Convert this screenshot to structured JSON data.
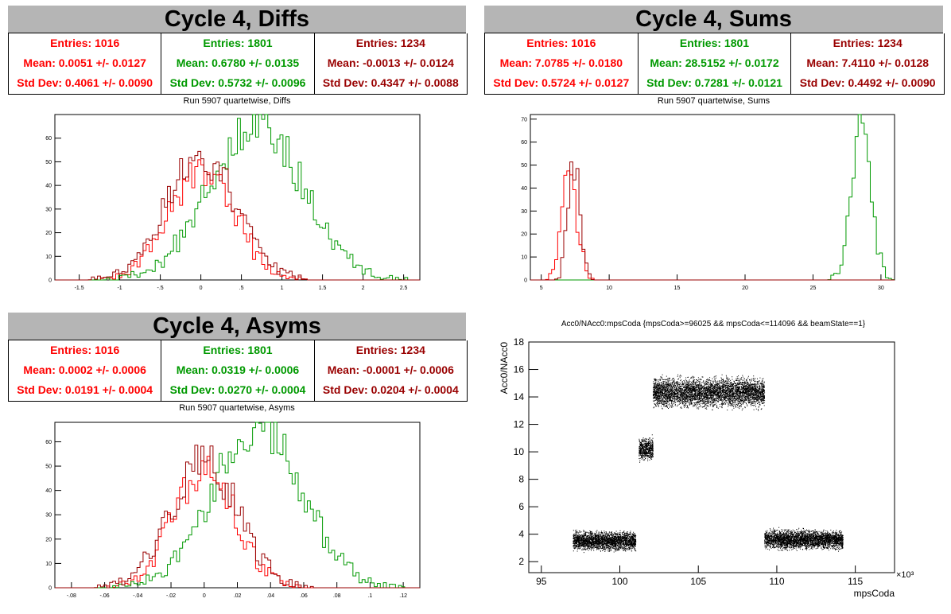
{
  "panels": {
    "diffs": {
      "title": "Cycle 4, Diffs",
      "subtitle": "Run 5907 quartetwise, Diffs",
      "stats": [
        {
          "entries": "Entries: 1016",
          "mean": "Mean: 0.0051 +/- 0.0127",
          "std": "Std Dev: 0.4061 +/- 0.0090"
        },
        {
          "entries": "Entries: 1801",
          "mean": "Mean: 0.6780 +/- 0.0135",
          "std": "Std Dev: 0.5732 +/- 0.0096"
        },
        {
          "entries": "Entries: 1234",
          "mean": "Mean: -0.0013 +/- 0.0124",
          "std": "Std Dev: 0.4347 +/- 0.0088"
        }
      ]
    },
    "sums": {
      "title": "Cycle 4, Sums",
      "subtitle": "Run 5907 quartetwise, Sums",
      "stats": [
        {
          "entries": "Entries: 1016",
          "mean": "Mean: 7.0785 +/- 0.0180",
          "std": "Std Dev: 0.5724 +/- 0.0127"
        },
        {
          "entries": "Entries: 1801",
          "mean": "Mean: 28.5152 +/- 0.0172",
          "std": "Std Dev: 0.7281 +/- 0.0121"
        },
        {
          "entries": "Entries: 1234",
          "mean": "Mean: 7.4110 +/- 0.0128",
          "std": "Std Dev: 0.4492 +/- 0.0090"
        }
      ]
    },
    "asyms": {
      "title": "Cycle 4, Asyms",
      "subtitle": "Run 5907 quartetwise, Asyms",
      "stats": [
        {
          "entries": "Entries: 1016",
          "mean": "Mean: 0.0002 +/- 0.0006",
          "std": "Std Dev: 0.0191 +/- 0.0004"
        },
        {
          "entries": "Entries: 1801",
          "mean": "Mean: 0.0319 +/- 0.0006",
          "std": "Std Dev: 0.0270 +/- 0.0004"
        },
        {
          "entries": "Entries: 1234",
          "mean": "Mean: -0.0001 +/- 0.0006",
          "std": "Std Dev: 0.0204 +/- 0.0004"
        }
      ]
    }
  },
  "colors": {
    "series1": "#ff0000",
    "series2": "#009900",
    "series3": "#990000",
    "title_bg": "#b5b5b5"
  },
  "chart_data": [
    {
      "id": "diffs",
      "type": "histogram",
      "xlim": [
        -1.8,
        2.7
      ],
      "ylim": [
        0,
        70
      ],
      "xticks": [
        -1.5,
        -1,
        -0.5,
        0,
        0.5,
        1,
        1.5,
        2,
        2.5
      ],
      "yticks": [
        0,
        10,
        20,
        30,
        40,
        50,
        60
      ],
      "series": [
        {
          "entries": 1016,
          "mean": 0.0051,
          "std": 0.4061,
          "peak": 47,
          "color": "#ff0000"
        },
        {
          "entries": 1801,
          "mean": 0.678,
          "std": 0.5732,
          "peak": 66,
          "color": "#009900"
        },
        {
          "entries": 1234,
          "mean": -0.0013,
          "std": 0.4347,
          "peak": 52,
          "color": "#990000"
        }
      ]
    },
    {
      "id": "sums",
      "type": "histogram",
      "xlim": [
        4.2,
        31
      ],
      "ylim": [
        0,
        72
      ],
      "xticks": [
        5,
        10,
        15,
        20,
        25,
        30
      ],
      "yticks": [
        0,
        10,
        20,
        30,
        40,
        50,
        60,
        70
      ],
      "series": [
        {
          "entries": 1016,
          "mean": 7.0785,
          "std": 0.5724,
          "peak": 45,
          "color": "#ff0000"
        },
        {
          "entries": 1801,
          "mean": 28.5152,
          "std": 0.7281,
          "peak": 69,
          "color": "#009900"
        },
        {
          "entries": 1234,
          "mean": 7.411,
          "std": 0.4492,
          "peak": 52,
          "color": "#990000"
        }
      ]
    },
    {
      "id": "asyms",
      "type": "histogram",
      "xlim": [
        -0.09,
        0.13
      ],
      "ylim": [
        0,
        68
      ],
      "xticks": [
        -0.08,
        -0.06,
        -0.04,
        -0.02,
        0,
        0.02,
        0.04,
        0.06,
        0.08,
        0.1,
        0.12
      ],
      "yticks": [
        0,
        10,
        20,
        30,
        40,
        50,
        60
      ],
      "series": [
        {
          "entries": 1016,
          "mean": 0.0002,
          "std": 0.0191,
          "peak": 47,
          "color": "#ff0000"
        },
        {
          "entries": 1801,
          "mean": 0.0319,
          "std": 0.027,
          "peak": 66,
          "color": "#009900"
        },
        {
          "entries": 1234,
          "mean": -0.0001,
          "std": 0.0204,
          "peak": 52,
          "color": "#990000"
        }
      ]
    },
    {
      "id": "scatter",
      "type": "scatter",
      "title": "Acc0/NAcc0:mpsCoda {mpsCoda>=96025 && mpsCoda<=114096 && beamState==1}",
      "xlabel": "mpsCoda",
      "ylabel": "Acc0/NAcc0",
      "xexp": "×10³",
      "xlim": [
        94.2,
        117.5
      ],
      "ylim": [
        1.2,
        18
      ],
      "xticks": [
        95,
        100,
        105,
        110,
        115
      ],
      "yticks": [
        2,
        4,
        6,
        8,
        10,
        12,
        14,
        16,
        18
      ],
      "clusters": [
        {
          "x": [
            97,
            101
          ],
          "y": 3.5,
          "spread": 0.45
        },
        {
          "x": [
            101.2,
            102.1
          ],
          "y": 10.2,
          "spread": 0.55
        },
        {
          "x": [
            102.1,
            109.2
          ],
          "y": 14.3,
          "spread": 0.7
        },
        {
          "x": [
            109.2,
            114.2
          ],
          "y": 3.6,
          "spread": 0.45
        }
      ]
    }
  ]
}
